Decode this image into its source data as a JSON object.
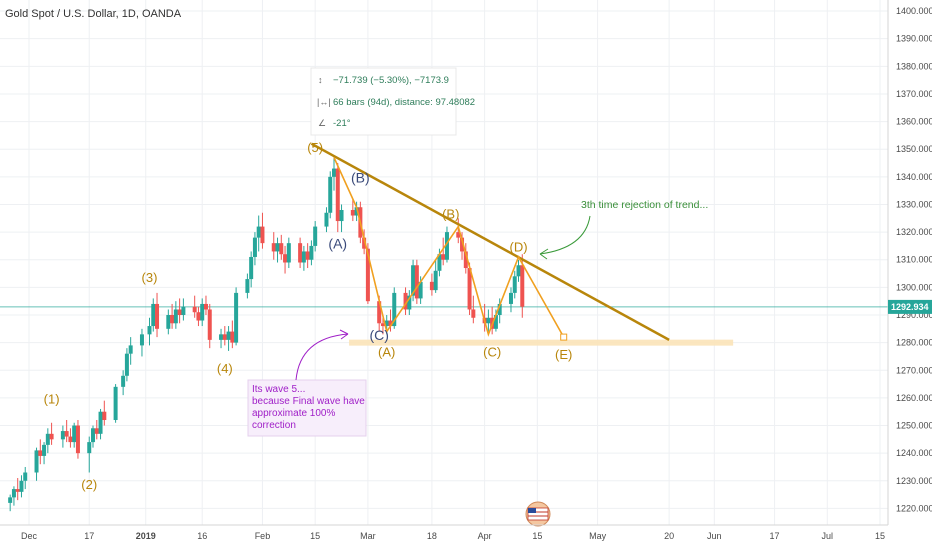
{
  "header": {
    "title": "Gold Spot / U.S. Dollar, 1D, OANDA"
  },
  "chart_data": {
    "type": "candlestick",
    "y_ticks": [
      "1220.000",
      "1230.000",
      "1240.000",
      "1250.000",
      "1260.000",
      "1270.000",
      "1280.000",
      "1290.000",
      "1300.000",
      "1310.000",
      "1320.000",
      "1330.000",
      "1340.000",
      "1350.000",
      "1360.000",
      "1370.000",
      "1380.000",
      "1390.000",
      "1400.000"
    ],
    "ylim": [
      1214,
      1404
    ],
    "x_ticks": [
      {
        "label": "Dec",
        "date": "2018-12-01",
        "bold": false
      },
      {
        "label": "17",
        "date": "2018-12-17",
        "bold": false
      },
      {
        "label": "2019",
        "date": "2019-01-01",
        "bold": true
      },
      {
        "label": "16",
        "date": "2019-01-16",
        "bold": false
      },
      {
        "label": "Feb",
        "date": "2019-02-01",
        "bold": false
      },
      {
        "label": "15",
        "date": "2019-02-15",
        "bold": false
      },
      {
        "label": "Mar",
        "date": "2019-03-01",
        "bold": false
      },
      {
        "label": "18",
        "date": "2019-03-18",
        "bold": false
      },
      {
        "label": "Apr",
        "date": "2019-04-01",
        "bold": false
      },
      {
        "label": "15",
        "date": "2019-04-15",
        "bold": false
      },
      {
        "label": "May",
        "date": "2019-05-01",
        "bold": false
      },
      {
        "label": "20",
        "date": "2019-05-20",
        "bold": false
      },
      {
        "label": "Jun",
        "date": "2019-06-01",
        "bold": false
      },
      {
        "label": "17",
        "date": "2019-06-17",
        "bold": false
      },
      {
        "label": "Jul",
        "date": "2019-07-01",
        "bold": false
      },
      {
        "label": "15",
        "date": "2019-07-15",
        "bold": false
      }
    ],
    "current_price": {
      "value": 1292.934,
      "label": "1292.934"
    },
    "candles": [
      [
        "2018-11-26",
        1222,
        1225,
        1219,
        1224
      ],
      [
        "2018-11-27",
        1224,
        1228,
        1221,
        1227
      ],
      [
        "2018-11-28",
        1227,
        1231,
        1223,
        1226
      ],
      [
        "2018-11-29",
        1226,
        1232,
        1224,
        1230
      ],
      [
        "2018-11-30",
        1230,
        1235,
        1227,
        1233
      ],
      [
        "2018-12-03",
        1233,
        1242,
        1230,
        1241
      ],
      [
        "2018-12-04",
        1241,
        1245,
        1236,
        1239
      ],
      [
        "2018-12-05",
        1239,
        1244,
        1236,
        1243
      ],
      [
        "2018-12-06",
        1243,
        1249,
        1240,
        1247
      ],
      [
        "2018-12-07",
        1247,
        1251,
        1243,
        1245
      ],
      [
        "2018-12-10",
        1245,
        1250,
        1242,
        1248
      ],
      [
        "2018-12-11",
        1248,
        1252,
        1244,
        1246
      ],
      [
        "2018-12-12",
        1246,
        1249,
        1242,
        1244
      ],
      [
        "2018-12-13",
        1244,
        1251,
        1242,
        1250
      ],
      [
        "2018-12-14",
        1250,
        1252,
        1238,
        1240
      ],
      [
        "2018-12-17",
        1240,
        1246,
        1233,
        1244
      ],
      [
        "2018-12-18",
        1244,
        1250,
        1242,
        1249
      ],
      [
        "2018-12-19",
        1249,
        1252,
        1245,
        1247
      ],
      [
        "2018-12-20",
        1247,
        1256,
        1245,
        1255
      ],
      [
        "2018-12-21",
        1255,
        1259,
        1250,
        1252
      ],
      [
        "2018-12-24",
        1252,
        1265,
        1251,
        1264
      ],
      [
        "2018-12-26",
        1264,
        1270,
        1261,
        1268
      ],
      [
        "2018-12-27",
        1268,
        1278,
        1266,
        1276
      ],
      [
        "2018-12-28",
        1276,
        1282,
        1272,
        1279
      ],
      [
        "2018-12-31",
        1279,
        1285,
        1275,
        1283
      ],
      [
        "2019-01-02",
        1283,
        1289,
        1279,
        1286
      ],
      [
        "2019-01-03",
        1286,
        1296,
        1284,
        1294
      ],
      [
        "2019-01-04",
        1294,
        1298,
        1282,
        1285
      ],
      [
        "2019-01-07",
        1285,
        1292,
        1283,
        1290
      ],
      [
        "2019-01-08",
        1290,
        1294,
        1285,
        1287
      ],
      [
        "2019-01-09",
        1287,
        1295,
        1285,
        1292
      ],
      [
        "2019-01-10",
        1292,
        1296,
        1287,
        1290
      ],
      [
        "2019-01-11",
        1290,
        1296,
        1288,
        1293
      ],
      [
        "2019-01-14",
        1293,
        1297,
        1289,
        1291
      ],
      [
        "2019-01-15",
        1291,
        1293,
        1286,
        1288
      ],
      [
        "2019-01-16",
        1288,
        1296,
        1286,
        1294
      ],
      [
        "2019-01-17",
        1294,
        1297,
        1290,
        1292
      ],
      [
        "2019-01-18",
        1292,
        1294,
        1278,
        1281
      ],
      [
        "2019-01-21",
        1281,
        1285,
        1278,
        1283
      ],
      [
        "2019-01-22",
        1283,
        1286,
        1279,
        1281
      ],
      [
        "2019-01-23",
        1281,
        1286,
        1277,
        1284
      ],
      [
        "2019-01-24",
        1284,
        1288,
        1278,
        1280
      ],
      [
        "2019-01-25",
        1280,
        1300,
        1279,
        1298
      ],
      [
        "2019-01-28",
        1298,
        1305,
        1296,
        1303
      ],
      [
        "2019-01-29",
        1303,
        1313,
        1300,
        1311
      ],
      [
        "2019-01-30",
        1311,
        1320,
        1308,
        1318
      ],
      [
        "2019-01-31",
        1318,
        1326,
        1313,
        1322
      ],
      [
        "2019-02-01",
        1322,
        1327,
        1314,
        1316
      ],
      [
        "2019-02-04",
        1316,
        1320,
        1310,
        1313
      ],
      [
        "2019-02-05",
        1313,
        1318,
        1309,
        1316
      ],
      [
        "2019-02-06",
        1316,
        1319,
        1310,
        1312
      ],
      [
        "2019-02-07",
        1312,
        1315,
        1305,
        1309
      ],
      [
        "2019-02-08",
        1309,
        1318,
        1307,
        1316
      ],
      [
        "2019-02-11",
        1316,
        1318,
        1307,
        1309
      ],
      [
        "2019-02-12",
        1309,
        1315,
        1306,
        1313
      ],
      [
        "2019-02-13",
        1313,
        1316,
        1307,
        1310
      ],
      [
        "2019-02-14",
        1310,
        1317,
        1308,
        1315
      ],
      [
        "2019-02-15",
        1315,
        1324,
        1313,
        1322
      ],
      [
        "2019-02-18",
        1322,
        1329,
        1320,
        1327
      ],
      [
        "2019-02-19",
        1327,
        1342,
        1325,
        1340
      ],
      [
        "2019-02-20",
        1340,
        1347,
        1335,
        1343
      ],
      [
        "2019-02-21",
        1343,
        1345,
        1320,
        1324
      ],
      [
        "2019-02-22",
        1324,
        1330,
        1320,
        1328
      ],
      [
        "2019-02-25",
        1328,
        1332,
        1324,
        1326
      ],
      [
        "2019-02-26",
        1326,
        1331,
        1324,
        1329
      ],
      [
        "2019-02-27",
        1329,
        1331,
        1316,
        1318
      ],
      [
        "2019-02-28",
        1318,
        1321,
        1312,
        1314
      ],
      [
        "2019-03-01",
        1314,
        1316,
        1294,
        1295
      ],
      [
        "2019-03-04",
        1295,
        1297,
        1284,
        1287
      ],
      [
        "2019-03-05",
        1287,
        1289,
        1283,
        1286
      ],
      [
        "2019-03-06",
        1286,
        1290,
        1283,
        1288
      ],
      [
        "2019-03-07",
        1288,
        1292,
        1284,
        1286
      ],
      [
        "2019-03-08",
        1286,
        1300,
        1285,
        1298
      ],
      [
        "2019-03-11",
        1298,
        1300,
        1290,
        1292
      ],
      [
        "2019-03-12",
        1292,
        1299,
        1290,
        1297
      ],
      [
        "2019-03-13",
        1297,
        1310,
        1295,
        1308
      ],
      [
        "2019-03-14",
        1308,
        1310,
        1294,
        1296
      ],
      [
        "2019-03-15",
        1296,
        1304,
        1294,
        1302
      ],
      [
        "2019-03-18",
        1302,
        1305,
        1297,
        1299
      ],
      [
        "2019-03-19",
        1299,
        1310,
        1298,
        1306
      ],
      [
        "2019-03-20",
        1306,
        1314,
        1304,
        1312
      ],
      [
        "2019-03-21",
        1312,
        1318,
        1308,
        1310
      ],
      [
        "2019-03-22",
        1310,
        1322,
        1309,
        1320
      ],
      [
        "2019-03-25",
        1320,
        1325,
        1316,
        1318
      ],
      [
        "2019-03-26",
        1318,
        1320,
        1310,
        1313
      ],
      [
        "2019-03-27",
        1313,
        1316,
        1305,
        1307
      ],
      [
        "2019-03-28",
        1307,
        1309,
        1290,
        1292
      ],
      [
        "2019-03-29",
        1292,
        1297,
        1287,
        1289
      ],
      [
        "2019-04-01",
        1289,
        1294,
        1284,
        1287
      ],
      [
        "2019-04-02",
        1287,
        1292,
        1283,
        1289
      ],
      [
        "2019-04-03",
        1289,
        1293,
        1283,
        1285
      ],
      [
        "2019-04-04",
        1285,
        1292,
        1284,
        1290
      ],
      [
        "2019-04-05",
        1290,
        1296,
        1287,
        1294
      ],
      [
        "2019-04-08",
        1294,
        1300,
        1291,
        1298
      ],
      [
        "2019-04-09",
        1298,
        1306,
        1296,
        1304
      ],
      [
        "2019-04-10",
        1304,
        1310,
        1302,
        1308
      ],
      [
        "2019-04-11",
        1308,
        1312,
        1289,
        1293
      ]
    ],
    "lines": [
      {
        "name": "descending-trendline",
        "points": [
          [
            "2019-02-14",
            1352
          ],
          [
            "2019-05-20",
            1281
          ]
        ]
      },
      {
        "name": "support-zone",
        "points": [
          [
            "2019-02-24",
            1280
          ],
          [
            "2019-06-06",
            1280
          ]
        ]
      }
    ],
    "wave_path": [
      [
        "2019-02-20",
        1347
      ],
      [
        "2019-02-26",
        1329
      ],
      [
        "2019-03-06",
        1284
      ],
      [
        "2019-03-25",
        1322
      ],
      [
        "2019-04-02",
        1283
      ],
      [
        "2019-04-10",
        1311
      ],
      [
        "2019-04-22",
        1282
      ]
    ],
    "wave_labels": [
      {
        "text": "(1)",
        "date": "2018-12-07",
        "price": 1258,
        "color": "orange"
      },
      {
        "text": "(2)",
        "date": "2018-12-17",
        "price": 1227,
        "color": "orange"
      },
      {
        "text": "(3)",
        "date": "2019-01-02",
        "price": 1302,
        "color": "orange"
      },
      {
        "text": "(4)",
        "date": "2019-01-22",
        "price": 1269,
        "color": "orange"
      },
      {
        "text": "(5)",
        "date": "2019-02-15",
        "price": 1349,
        "color": "orange"
      },
      {
        "text": "(A)",
        "date": "2019-02-21",
        "price": 1314,
        "color": "blue"
      },
      {
        "text": "(B)",
        "date": "2019-02-27",
        "price": 1338,
        "color": "blue"
      },
      {
        "text": "(C)",
        "date": "2019-03-04",
        "price": 1281,
        "color": "blue"
      },
      {
        "text": "(A)",
        "date": "2019-03-06",
        "price": 1275,
        "color": "orange"
      },
      {
        "text": "(B)",
        "date": "2019-03-23",
        "price": 1325,
        "color": "orange"
      },
      {
        "text": "(C)",
        "date": "2019-04-03",
        "price": 1275,
        "color": "orange"
      },
      {
        "text": "(D)",
        "date": "2019-04-10",
        "price": 1313,
        "color": "orange"
      },
      {
        "text": "(E)",
        "date": "2019-04-22",
        "price": 1274,
        "color": "orange"
      }
    ],
    "measure_box": {
      "price_change": "−71.739 (−5.30%), −7173.9",
      "bars": "66 bars (94d), distance: 97.48082",
      "angle": "-21°"
    },
    "annotations": {
      "green_note": "3th time rejection of trend...",
      "purple_note": [
        "Its wave 5...",
        "because Final wave have",
        "approximate 100%",
        "correction"
      ]
    }
  },
  "colors": {
    "up": "#26a69a",
    "down": "#ef5350",
    "trend": "#b8860b",
    "wave": "#f0a020",
    "current_price": "#26a69a"
  }
}
